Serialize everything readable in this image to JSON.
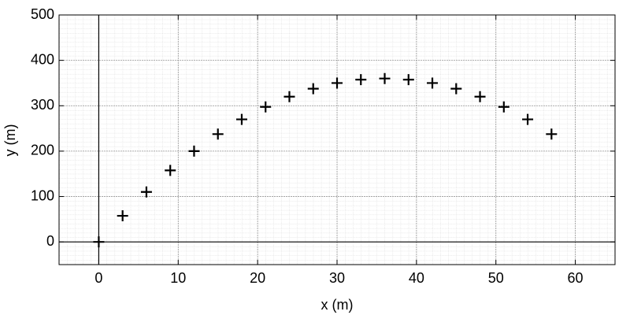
{
  "chart_data": {
    "type": "scatter",
    "x_label": "x (m)",
    "y_label": "y (m)",
    "x": [
      0,
      3,
      6,
      9,
      12,
      15,
      18,
      21,
      24,
      27,
      30,
      33,
      36,
      39,
      42,
      45,
      48,
      51,
      54,
      57
    ],
    "y": [
      0,
      57.5,
      110,
      157.5,
      200,
      237.5,
      270,
      297.5,
      320,
      337.5,
      350,
      357.5,
      360,
      357.5,
      350,
      337.5,
      320,
      297.5,
      270,
      237.5
    ],
    "color": "#000000",
    "marker": "plus",
    "xlim": [
      -5,
      65
    ],
    "ylim": [
      -50,
      500
    ],
    "xticks": [
      0,
      10,
      20,
      30,
      40,
      50,
      60
    ],
    "yticks": [
      0,
      100,
      200,
      300,
      400,
      500
    ],
    "grid": true,
    "minor_grid": true
  }
}
